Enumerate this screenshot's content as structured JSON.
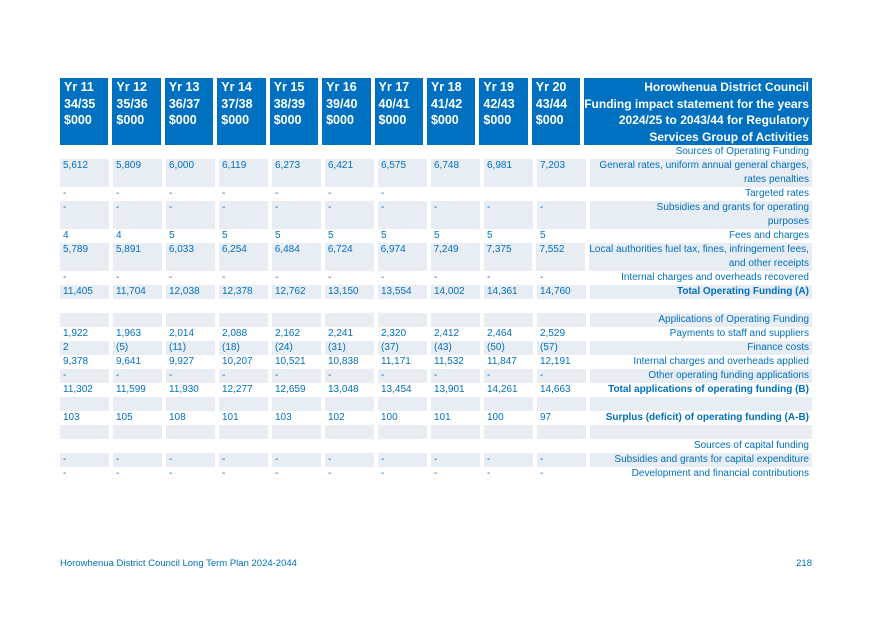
{
  "header": {
    "columns": [
      {
        "yr": "Yr 11",
        "period": "34/35",
        "unit": "$000"
      },
      {
        "yr": "Yr 12",
        "period": "35/36",
        "unit": "$000"
      },
      {
        "yr": "Yr 13",
        "period": "36/37",
        "unit": "$000"
      },
      {
        "yr": "Yr 14",
        "period": "37/38",
        "unit": "$000"
      },
      {
        "yr": "Yr 15",
        "period": "38/39",
        "unit": "$000"
      },
      {
        "yr": "Yr 16",
        "period": "39/40",
        "unit": "$000"
      },
      {
        "yr": "Yr 17",
        "period": "40/41",
        "unit": "$000"
      },
      {
        "yr": "Yr 18",
        "period": "41/42",
        "unit": "$000"
      },
      {
        "yr": "Yr 19",
        "period": "42/43",
        "unit": "$000"
      },
      {
        "yr": "Yr 20",
        "period": "43/44",
        "unit": "$000"
      }
    ],
    "title_lines": [
      "Horowhenua District Council",
      "Funding impact statement for the years",
      "2024/25 to 2043/44 for Regulatory",
      "Services Group of Activities"
    ]
  },
  "rows": [
    {
      "style": "section",
      "shade": false,
      "values": [
        "",
        "",
        "",
        "",
        "",
        "",
        "",
        "",
        "",
        ""
      ],
      "desc": [
        "Sources of Operating Funding"
      ]
    },
    {
      "style": "normal",
      "shade": true,
      "values": [
        "5,612",
        "5,809",
        "6,000",
        "6,119",
        "6,273",
        "6,421",
        "6,575",
        "6,748",
        "6,981",
        "7,203"
      ],
      "desc": [
        "General rates, uniform annual general charges,",
        "rates penalties"
      ]
    },
    {
      "style": "normal",
      "shade": false,
      "values": [
        "-",
        "-",
        "-",
        "-",
        "-",
        "-",
        "-",
        "",
        "",
        ""
      ],
      "desc": [
        "Targeted rates"
      ]
    },
    {
      "style": "normal",
      "shade": true,
      "values": [
        "-",
        "-",
        "-",
        "-",
        "-",
        "-",
        "-",
        "-",
        "-",
        "-"
      ],
      "desc": [
        "Subsidies and grants for operating",
        "purposes"
      ]
    },
    {
      "style": "normal",
      "shade": false,
      "values": [
        "4",
        "4",
        "5",
        "5",
        "5",
        "5",
        "5",
        "5",
        "5",
        "5"
      ],
      "desc": [
        "Fees and charges"
      ]
    },
    {
      "style": "normal",
      "shade": true,
      "values": [
        "5,789",
        "5,891",
        "6,033",
        "6,254",
        "6,484",
        "6,724",
        "6,974",
        "7,249",
        "7,375",
        "7,552"
      ],
      "desc": [
        "Local authorities fuel tax, fines, infringement fees,",
        "and other receipts"
      ]
    },
    {
      "style": "normal",
      "shade": false,
      "values": [
        "-",
        "-",
        "-",
        "-",
        "-",
        "-",
        "-",
        "-",
        "-",
        "-"
      ],
      "desc": [
        "Internal charges and overheads recovered"
      ]
    },
    {
      "style": "bold",
      "shade": true,
      "values": [
        "11,405",
        "11,704",
        "12,038",
        "12,378",
        "12,762",
        "13,150",
        "13,554",
        "14,002",
        "14,361",
        "14,760"
      ],
      "desc": [
        "Total Operating Funding (A)"
      ]
    },
    {
      "style": "blank",
      "shade": false,
      "values": [
        "",
        "",
        "",
        "",
        "",
        "",
        "",
        "",
        "",
        ""
      ],
      "desc": [
        ""
      ]
    },
    {
      "style": "section",
      "shade": true,
      "values": [
        "",
        "",
        "",
        "",
        "",
        "",
        "",
        "",
        "",
        ""
      ],
      "desc": [
        "Applications of Operating Funding"
      ]
    },
    {
      "style": "normal",
      "shade": false,
      "values": [
        "1,922",
        "1,963",
        "2,014",
        "2,088",
        "2,162",
        "2,241",
        "2,320",
        "2,412",
        "2,464",
        "2,529"
      ],
      "desc": [
        "Payments to staff and suppliers"
      ]
    },
    {
      "style": "normal",
      "shade": true,
      "values": [
        "2",
        "(5)",
        "(11)",
        "(18)",
        "(24)",
        "(31)",
        "(37)",
        "(43)",
        "(50)",
        "(57)"
      ],
      "desc": [
        "Finance costs"
      ]
    },
    {
      "style": "normal",
      "shade": false,
      "values": [
        "9,378",
        "9,641",
        "9,927",
        "10,207",
        "10,521",
        "10,838",
        "11,171",
        "11,532",
        "11,847",
        "12,191"
      ],
      "desc": [
        "Internal charges and overheads applied"
      ]
    },
    {
      "style": "normal",
      "shade": true,
      "values": [
        "-",
        "-",
        "-",
        "-",
        "-",
        "-",
        "-",
        "-",
        "-",
        "-"
      ],
      "desc": [
        "Other operating funding applications"
      ]
    },
    {
      "style": "bold",
      "shade": false,
      "values": [
        "11,302",
        "11,599",
        "11,930",
        "12,277",
        "12,659",
        "13,048",
        "13,454",
        "13,901",
        "14,261",
        "14,663"
      ],
      "desc": [
        "Total applications of operating funding  (B)"
      ]
    },
    {
      "style": "blank",
      "shade": true,
      "values": [
        "",
        "",
        "",
        "",
        "",
        "",
        "",
        "",
        "",
        ""
      ],
      "desc": [
        ""
      ]
    },
    {
      "style": "bold",
      "shade": false,
      "values": [
        "103",
        "105",
        "108",
        "101",
        "103",
        "102",
        "100",
        "101",
        "100",
        "97"
      ],
      "desc": [
        "Surplus (deficit) of operating funding (A-B)"
      ]
    },
    {
      "style": "blank",
      "shade": true,
      "values": [
        "",
        "",
        "",
        "",
        "",
        "",
        "",
        "",
        "",
        ""
      ],
      "desc": [
        ""
      ]
    },
    {
      "style": "section",
      "shade": false,
      "values": [
        "",
        "",
        "",
        "",
        "",
        "",
        "",
        "",
        "",
        ""
      ],
      "desc": [
        "Sources of capital funding"
      ]
    },
    {
      "style": "normal",
      "shade": true,
      "values": [
        "-",
        "-",
        "-",
        "-",
        "-",
        "-",
        "-",
        "-",
        "-",
        "-"
      ],
      "desc": [
        "Subsidies and grants for capital  expenditure"
      ]
    },
    {
      "style": "normal",
      "shade": false,
      "values": [
        "-",
        "-",
        "-",
        "-",
        "-",
        "-",
        "-",
        "-",
        "-",
        "-"
      ],
      "desc": [
        "Development and financial contributions"
      ]
    }
  ],
  "footer": {
    "left": "Horowhenua District Council Long Term Plan 2024-2044",
    "page": "218"
  }
}
